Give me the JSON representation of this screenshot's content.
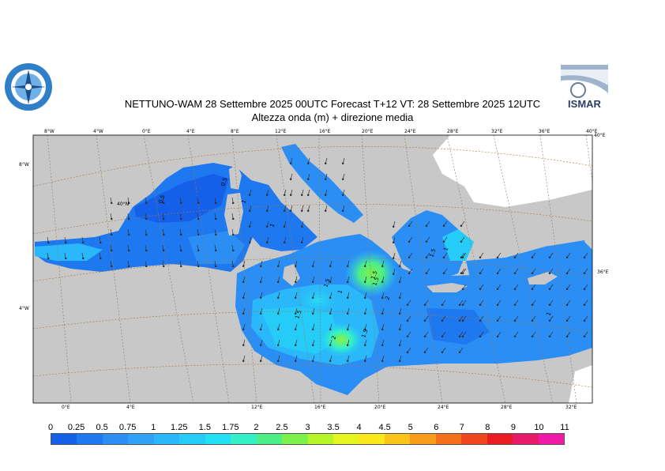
{
  "header": {
    "title_line1": "NETTUNO-WAM  28 Settembre 2025 00UTC Forecast T+12 VT: 28 Settembre 2025 12UTC",
    "title_line2": "Altezza onda (m) + direzione media",
    "logo_right_text": "ISMAR"
  },
  "axes": {
    "top_lon_labels": [
      "8°W",
      "4°W",
      "0°E",
      "4°E",
      "8°E",
      "12°E",
      "16°E",
      "20°E",
      "24°E",
      "28°E",
      "32°E",
      "36°E",
      "40°E"
    ],
    "bottom_lon_labels": [
      "0°E",
      "4°E",
      "12°E",
      "16°E",
      "20°E",
      "24°E",
      "28°E",
      "32°E"
    ],
    "left_lat_labels": [
      "8°W",
      "4°W"
    ],
    "right_lat_labels": [
      "40°E",
      "36°E"
    ],
    "inner_lat_label": "40°N"
  },
  "contour_labels": [
    "0.5",
    "0.5",
    "1",
    "1",
    "1.5",
    "1",
    "1.5",
    "2",
    "1.5",
    "2",
    "1.5",
    "1.5",
    "1",
    "1",
    "1.5"
  ],
  "legend": {
    "ticks": [
      "0",
      "0.25",
      "0.5",
      "0.75",
      "1",
      "1.25",
      "1.5",
      "1.75",
      "2",
      "2.5",
      "3",
      "3.5",
      "4",
      "4.5",
      "5",
      "6",
      "7",
      "8",
      "9",
      "10",
      "11"
    ],
    "colors": [
      "#1560e8",
      "#1e78f0",
      "#2a8ef5",
      "#2fa2f8",
      "#2ab8fa",
      "#25ccf8",
      "#24e0f4",
      "#33f0c8",
      "#4cee88",
      "#7ef04a",
      "#b6f528",
      "#e4f520",
      "#fbe81c",
      "#fbc41a",
      "#f89a1a",
      "#f4701a",
      "#f0461e",
      "#ea1c22",
      "#e81a6a",
      "#f01aa8"
    ]
  },
  "colors": {
    "land": "#c8c8c8",
    "frame": "#000000",
    "graticule": "#a07848"
  }
}
